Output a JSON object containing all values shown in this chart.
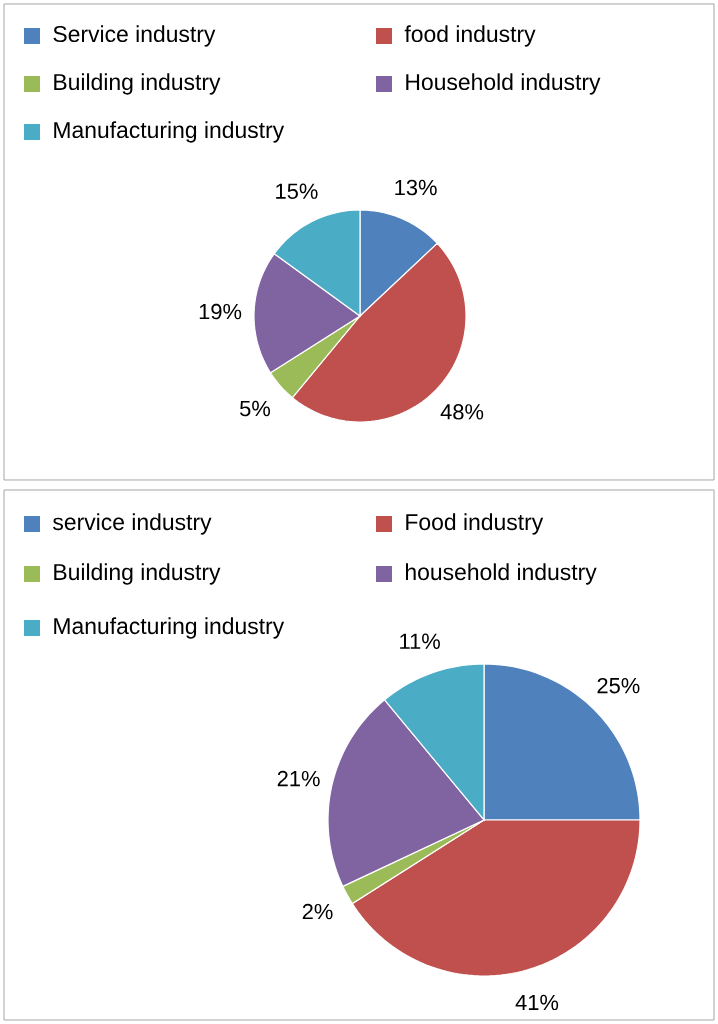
{
  "chart_data": [
    {
      "type": "pie",
      "categories": [
        "Service industry",
        "food industry",
        "Building industry",
        "Household industry",
        "Manufacturing industry"
      ],
      "values": [
        13,
        48,
        5,
        19,
        15
      ],
      "value_labels": [
        "13%",
        "48%",
        "5%",
        "19%",
        "15%"
      ],
      "colors": [
        "#4f81bd",
        "#c0504d",
        "#9bbb59",
        "#8064a2",
        "#4bacc6"
      ],
      "legend": "top"
    },
    {
      "type": "pie",
      "categories": [
        "service industry",
        "Food industry",
        "Building industry",
        "household industry",
        "Manufacturing industry"
      ],
      "values": [
        25,
        41,
        2,
        21,
        11
      ],
      "value_labels": [
        "25%",
        "41%",
        "2%",
        "21%",
        "11%"
      ],
      "colors": [
        "#4f81bd",
        "#c0504d",
        "#9bbb59",
        "#8064a2",
        "#4bacc6"
      ],
      "legend": "top"
    }
  ]
}
